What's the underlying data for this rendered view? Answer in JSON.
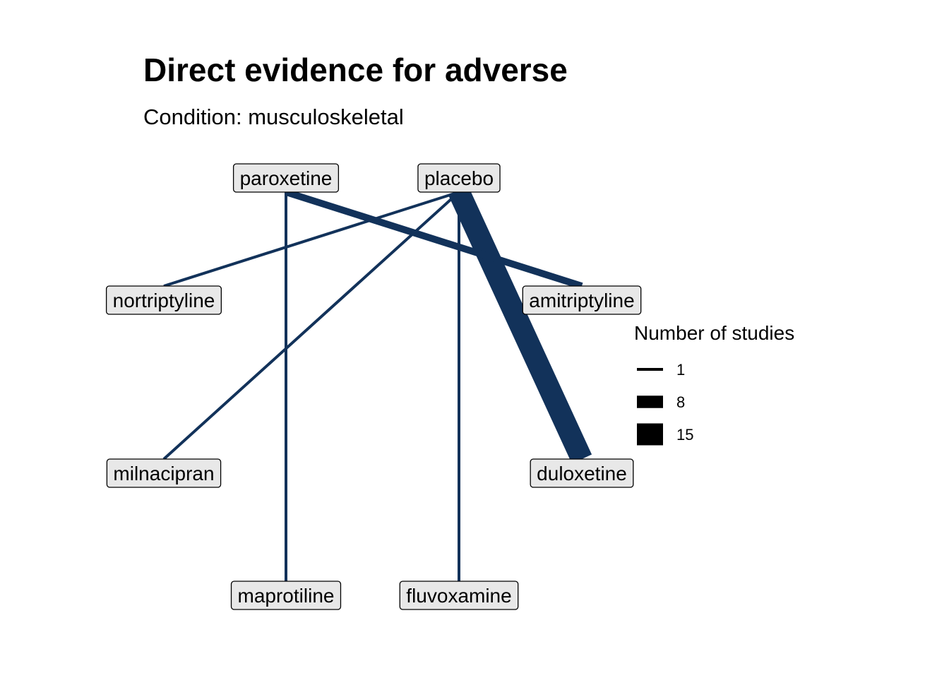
{
  "header": {
    "title": "Direct evidence for adverse",
    "subtitle": "Condition: musculoskeletal"
  },
  "colors": {
    "edge": "#12325a",
    "node_fill": "#e8e8e8",
    "node_border": "#000000"
  },
  "nodes": [
    {
      "id": "paroxetine",
      "label": "paroxetine"
    },
    {
      "id": "placebo",
      "label": "placebo"
    },
    {
      "id": "nortriptyline",
      "label": "nortriptyline"
    },
    {
      "id": "amitriptyline",
      "label": "amitriptyline"
    },
    {
      "id": "milnacipran",
      "label": "milnacipran"
    },
    {
      "id": "duloxetine",
      "label": "duloxetine"
    },
    {
      "id": "maprotiline",
      "label": "maprotiline"
    },
    {
      "id": "fluvoxamine",
      "label": "fluvoxamine"
    }
  ],
  "edges": [
    {
      "from": "placebo",
      "to": "nortriptyline",
      "studies": 1
    },
    {
      "from": "placebo",
      "to": "milnacipran",
      "studies": 1
    },
    {
      "from": "placebo",
      "to": "fluvoxamine",
      "studies": 1
    },
    {
      "from": "placebo",
      "to": "duloxetine",
      "studies": 15
    },
    {
      "from": "paroxetine",
      "to": "maprotiline",
      "studies": 1
    },
    {
      "from": "paroxetine",
      "to": "amitriptyline",
      "studies": 4
    }
  ],
  "legend": {
    "title": "Number of studies",
    "items": [
      {
        "label": "1",
        "value": 1
      },
      {
        "label": "8",
        "value": 8
      },
      {
        "label": "15",
        "value": 15
      }
    ]
  }
}
